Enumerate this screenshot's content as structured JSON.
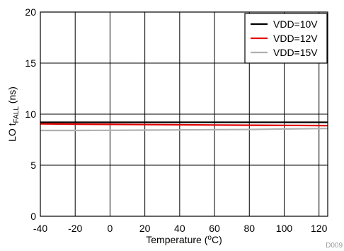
{
  "chart_data": {
    "type": "line",
    "xlabel": "Temperature (°C)",
    "ylabel": "LO t_FALL (ns)",
    "xlim": [
      -40,
      125
    ],
    "ylim": [
      0,
      20
    ],
    "x_ticks": [
      -40,
      -20,
      0,
      20,
      40,
      60,
      80,
      100,
      120
    ],
    "y_ticks": [
      0,
      5,
      10,
      15,
      20
    ],
    "grid": true,
    "legend_position": "top-right",
    "figure_id": "D009",
    "series": [
      {
        "name": "VDD=10V",
        "color": "#000000",
        "x": [
          -40,
          -20,
          0,
          20,
          40,
          60,
          80,
          100,
          125
        ],
        "y": [
          9.2,
          9.2,
          9.2,
          9.2,
          9.2,
          9.2,
          9.2,
          9.2,
          9.2
        ]
      },
      {
        "name": "VDD=12V",
        "color": "#e00000",
        "x": [
          -40,
          -20,
          0,
          20,
          40,
          60,
          80,
          100,
          125
        ],
        "y": [
          9.05,
          9.02,
          9.0,
          8.98,
          8.96,
          8.94,
          8.92,
          8.9,
          8.88
        ]
      },
      {
        "name": "VDD=15V",
        "color": "#b0b0b0",
        "x": [
          -40,
          -20,
          0,
          20,
          40,
          60,
          80,
          100,
          125
        ],
        "y": [
          8.4,
          8.4,
          8.42,
          8.44,
          8.46,
          8.48,
          8.5,
          8.55,
          8.6
        ]
      }
    ]
  }
}
